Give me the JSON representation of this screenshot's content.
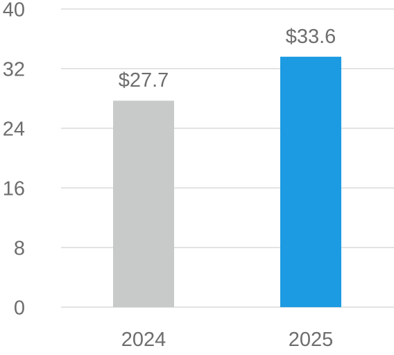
{
  "chart_data": {
    "type": "bar",
    "categories": [
      "2024",
      "2025"
    ],
    "values": [
      27.7,
      33.6
    ],
    "data_labels": [
      "$27.7",
      "$33.6"
    ],
    "bar_colors": [
      "#c8c9c9",
      "#1d9be2"
    ],
    "ylim": [
      0,
      40
    ],
    "yticks": [
      0,
      8,
      16,
      24,
      32,
      40
    ],
    "ytick_labels": [
      "0",
      "8",
      "16",
      "24",
      "32",
      "40"
    ],
    "grid": true,
    "title": "",
    "xlabel": "",
    "ylabel": "",
    "colors": {
      "grid": "#e3e3e3",
      "text": "#6d6d6d"
    }
  }
}
